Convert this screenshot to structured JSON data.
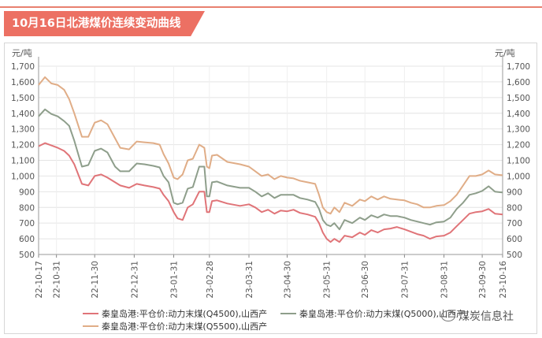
{
  "header": {
    "title": "10月16日北港煤价连续变动曲线"
  },
  "watermark": {
    "text": "煤炭信息社",
    "icon": "wechat-icon"
  },
  "colors": {
    "accent": "#ec7063",
    "series": [
      "#e07478",
      "#8e9e8b",
      "#e0ad87"
    ]
  },
  "chart_data": {
    "type": "line",
    "y_unit_left": "元/吨",
    "y_unit_right": "元/吨",
    "ylim": [
      500,
      1700
    ],
    "yticks": [
      "500",
      "600",
      "700",
      "800",
      "900",
      "1,000",
      "1,100",
      "1,200",
      "1,300",
      "1,400",
      "1,500",
      "1,600",
      "1,700"
    ],
    "xlim": [
      "2022-10-17",
      "2023-10-16"
    ],
    "xticks": [
      "22-10-17",
      "22-10-31",
      "22-11-30",
      "22-12-31",
      "23-01-31",
      "23-02-28",
      "23-03-31",
      "23-04-30",
      "23-05-31",
      "23-06-30",
      "23-07-31",
      "23-08-31",
      "23-09-30",
      "23-10-16"
    ],
    "grid": true,
    "legend_position": "bottom",
    "series": [
      {
        "name": "秦皇岛港:平仓价:动力末煤(Q4500),山西产",
        "points": [
          [
            "2022-10-17",
            1190
          ],
          [
            "2022-10-22",
            1210
          ],
          [
            "2022-10-27",
            1195
          ],
          [
            "2022-11-01",
            1180
          ],
          [
            "2022-11-06",
            1160
          ],
          [
            "2022-11-10",
            1130
          ],
          [
            "2022-11-14",
            1075
          ],
          [
            "2022-11-20",
            950
          ],
          [
            "2022-11-25",
            940
          ],
          [
            "2022-11-30",
            1000
          ],
          [
            "2022-12-05",
            1010
          ],
          [
            "2022-12-10",
            990
          ],
          [
            "2022-12-16",
            960
          ],
          [
            "2022-12-20",
            940
          ],
          [
            "2022-12-27",
            925
          ],
          [
            "2023-01-02",
            950
          ],
          [
            "2023-01-08",
            940
          ],
          [
            "2023-01-15",
            930
          ],
          [
            "2023-01-20",
            920
          ],
          [
            "2023-01-23",
            880
          ],
          [
            "2023-01-27",
            840
          ],
          [
            "2023-01-31",
            770
          ],
          [
            "2023-02-03",
            730
          ],
          [
            "2023-02-07",
            720
          ],
          [
            "2023-02-11",
            800
          ],
          [
            "2023-02-15",
            820
          ],
          [
            "2023-02-20",
            900
          ],
          [
            "2023-02-24",
            900
          ],
          [
            "2023-02-26",
            770
          ],
          [
            "2023-02-28",
            770
          ],
          [
            "2023-03-02",
            840
          ],
          [
            "2023-03-06",
            845
          ],
          [
            "2023-03-14",
            825
          ],
          [
            "2023-03-24",
            810
          ],
          [
            "2023-03-31",
            820
          ],
          [
            "2023-04-05",
            800
          ],
          [
            "2023-04-10",
            770
          ],
          [
            "2023-04-15",
            785
          ],
          [
            "2023-04-20",
            760
          ],
          [
            "2023-04-25",
            780
          ],
          [
            "2023-04-30",
            775
          ],
          [
            "2023-05-05",
            785
          ],
          [
            "2023-05-10",
            765
          ],
          [
            "2023-05-16",
            755
          ],
          [
            "2023-05-22",
            740
          ],
          [
            "2023-05-25",
            700
          ],
          [
            "2023-05-28",
            640
          ],
          [
            "2023-05-31",
            600
          ],
          [
            "2023-06-03",
            580
          ],
          [
            "2023-06-06",
            600
          ],
          [
            "2023-06-10",
            580
          ],
          [
            "2023-06-14",
            620
          ],
          [
            "2023-06-20",
            610
          ],
          [
            "2023-06-26",
            640
          ],
          [
            "2023-06-30",
            625
          ],
          [
            "2023-07-05",
            655
          ],
          [
            "2023-07-10",
            640
          ],
          [
            "2023-07-15",
            660
          ],
          [
            "2023-07-20",
            665
          ],
          [
            "2023-07-25",
            675
          ],
          [
            "2023-07-31",
            660
          ],
          [
            "2023-08-05",
            645
          ],
          [
            "2023-08-10",
            630
          ],
          [
            "2023-08-15",
            620
          ],
          [
            "2023-08-20",
            600
          ],
          [
            "2023-08-25",
            615
          ],
          [
            "2023-08-31",
            620
          ],
          [
            "2023-09-05",
            640
          ],
          [
            "2023-09-10",
            680
          ],
          [
            "2023-09-15",
            720
          ],
          [
            "2023-09-20",
            760
          ],
          [
            "2023-09-25",
            770
          ],
          [
            "2023-09-30",
            775
          ],
          [
            "2023-10-05",
            790
          ],
          [
            "2023-10-10",
            760
          ],
          [
            "2023-10-16",
            755
          ]
        ]
      },
      {
        "name": "秦皇岛港:平仓价:动力末煤(Q5000),山西产",
        "points": [
          [
            "2022-10-17",
            1380
          ],
          [
            "2022-10-22",
            1425
          ],
          [
            "2022-10-27",
            1395
          ],
          [
            "2022-11-01",
            1380
          ],
          [
            "2022-11-06",
            1350
          ],
          [
            "2022-11-10",
            1320
          ],
          [
            "2022-11-14",
            1225
          ],
          [
            "2022-11-20",
            1060
          ],
          [
            "2022-11-25",
            1070
          ],
          [
            "2022-11-30",
            1160
          ],
          [
            "2022-12-05",
            1175
          ],
          [
            "2022-12-10",
            1150
          ],
          [
            "2022-12-16",
            1060
          ],
          [
            "2022-12-20",
            1030
          ],
          [
            "2022-12-27",
            1030
          ],
          [
            "2023-01-02",
            1080
          ],
          [
            "2023-01-08",
            1075
          ],
          [
            "2023-01-15",
            1065
          ],
          [
            "2023-01-20",
            1055
          ],
          [
            "2023-01-23",
            1000
          ],
          [
            "2023-01-27",
            960
          ],
          [
            "2023-01-31",
            830
          ],
          [
            "2023-02-03",
            820
          ],
          [
            "2023-02-07",
            830
          ],
          [
            "2023-02-11",
            920
          ],
          [
            "2023-02-15",
            930
          ],
          [
            "2023-02-20",
            1060
          ],
          [
            "2023-02-24",
            1060
          ],
          [
            "2023-02-26",
            870
          ],
          [
            "2023-02-28",
            870
          ],
          [
            "2023-03-02",
            960
          ],
          [
            "2023-03-06",
            965
          ],
          [
            "2023-03-14",
            940
          ],
          [
            "2023-03-24",
            925
          ],
          [
            "2023-03-31",
            925
          ],
          [
            "2023-04-05",
            900
          ],
          [
            "2023-04-10",
            870
          ],
          [
            "2023-04-15",
            890
          ],
          [
            "2023-04-20",
            860
          ],
          [
            "2023-04-25",
            880
          ],
          [
            "2023-04-30",
            880
          ],
          [
            "2023-05-05",
            880
          ],
          [
            "2023-05-10",
            860
          ],
          [
            "2023-05-16",
            850
          ],
          [
            "2023-05-22",
            835
          ],
          [
            "2023-05-25",
            790
          ],
          [
            "2023-05-28",
            720
          ],
          [
            "2023-05-31",
            690
          ],
          [
            "2023-06-03",
            680
          ],
          [
            "2023-06-06",
            700
          ],
          [
            "2023-06-10",
            660
          ],
          [
            "2023-06-14",
            720
          ],
          [
            "2023-06-20",
            700
          ],
          [
            "2023-06-26",
            735
          ],
          [
            "2023-06-30",
            720
          ],
          [
            "2023-07-05",
            750
          ],
          [
            "2023-07-10",
            735
          ],
          [
            "2023-07-15",
            755
          ],
          [
            "2023-07-20",
            745
          ],
          [
            "2023-07-25",
            745
          ],
          [
            "2023-07-31",
            735
          ],
          [
            "2023-08-05",
            720
          ],
          [
            "2023-08-10",
            710
          ],
          [
            "2023-08-15",
            700
          ],
          [
            "2023-08-20",
            690
          ],
          [
            "2023-08-25",
            705
          ],
          [
            "2023-08-31",
            710
          ],
          [
            "2023-09-05",
            735
          ],
          [
            "2023-09-10",
            790
          ],
          [
            "2023-09-15",
            830
          ],
          [
            "2023-09-20",
            880
          ],
          [
            "2023-09-25",
            890
          ],
          [
            "2023-09-30",
            905
          ],
          [
            "2023-10-05",
            935
          ],
          [
            "2023-10-10",
            900
          ],
          [
            "2023-10-16",
            895
          ]
        ]
      },
      {
        "name": "秦皇岛港:平仓价:动力末煤(Q5500),山西产",
        "points": [
          [
            "2022-10-17",
            1580
          ],
          [
            "2022-10-22",
            1630
          ],
          [
            "2022-10-27",
            1590
          ],
          [
            "2022-11-01",
            1580
          ],
          [
            "2022-11-06",
            1550
          ],
          [
            "2022-11-10",
            1490
          ],
          [
            "2022-11-14",
            1400
          ],
          [
            "2022-11-20",
            1250
          ],
          [
            "2022-11-25",
            1250
          ],
          [
            "2022-11-30",
            1340
          ],
          [
            "2022-12-05",
            1355
          ],
          [
            "2022-12-10",
            1330
          ],
          [
            "2022-12-16",
            1240
          ],
          [
            "2022-12-20",
            1180
          ],
          [
            "2022-12-27",
            1170
          ],
          [
            "2023-01-02",
            1220
          ],
          [
            "2023-01-08",
            1215
          ],
          [
            "2023-01-15",
            1210
          ],
          [
            "2023-01-20",
            1200
          ],
          [
            "2023-01-23",
            1140
          ],
          [
            "2023-01-27",
            1080
          ],
          [
            "2023-01-31",
            990
          ],
          [
            "2023-02-03",
            980
          ],
          [
            "2023-02-07",
            1010
          ],
          [
            "2023-02-11",
            1100
          ],
          [
            "2023-02-15",
            1110
          ],
          [
            "2023-02-20",
            1200
          ],
          [
            "2023-02-24",
            1180
          ],
          [
            "2023-02-26",
            1060
          ],
          [
            "2023-02-28",
            1050
          ],
          [
            "2023-03-02",
            1130
          ],
          [
            "2023-03-06",
            1135
          ],
          [
            "2023-03-14",
            1090
          ],
          [
            "2023-03-24",
            1075
          ],
          [
            "2023-03-31",
            1060
          ],
          [
            "2023-04-05",
            1030
          ],
          [
            "2023-04-10",
            1000
          ],
          [
            "2023-04-15",
            1010
          ],
          [
            "2023-04-20",
            980
          ],
          [
            "2023-04-25",
            1000
          ],
          [
            "2023-04-30",
            990
          ],
          [
            "2023-05-05",
            985
          ],
          [
            "2023-05-10",
            970
          ],
          [
            "2023-05-16",
            960
          ],
          [
            "2023-05-22",
            950
          ],
          [
            "2023-05-25",
            880
          ],
          [
            "2023-05-28",
            800
          ],
          [
            "2023-05-31",
            770
          ],
          [
            "2023-06-03",
            760
          ],
          [
            "2023-06-06",
            800
          ],
          [
            "2023-06-10",
            770
          ],
          [
            "2023-06-14",
            830
          ],
          [
            "2023-06-20",
            810
          ],
          [
            "2023-06-26",
            850
          ],
          [
            "2023-06-30",
            840
          ],
          [
            "2023-07-05",
            870
          ],
          [
            "2023-07-10",
            850
          ],
          [
            "2023-07-15",
            870
          ],
          [
            "2023-07-20",
            855
          ],
          [
            "2023-07-25",
            850
          ],
          [
            "2023-07-31",
            845
          ],
          [
            "2023-08-05",
            830
          ],
          [
            "2023-08-10",
            820
          ],
          [
            "2023-08-15",
            800
          ],
          [
            "2023-08-20",
            800
          ],
          [
            "2023-08-25",
            810
          ],
          [
            "2023-08-31",
            815
          ],
          [
            "2023-09-05",
            840
          ],
          [
            "2023-09-10",
            880
          ],
          [
            "2023-09-15",
            940
          ],
          [
            "2023-09-20",
            1000
          ],
          [
            "2023-09-25",
            1000
          ],
          [
            "2023-09-30",
            1010
          ],
          [
            "2023-10-05",
            1035
          ],
          [
            "2023-10-10",
            1010
          ],
          [
            "2023-10-16",
            1005
          ]
        ]
      }
    ]
  }
}
